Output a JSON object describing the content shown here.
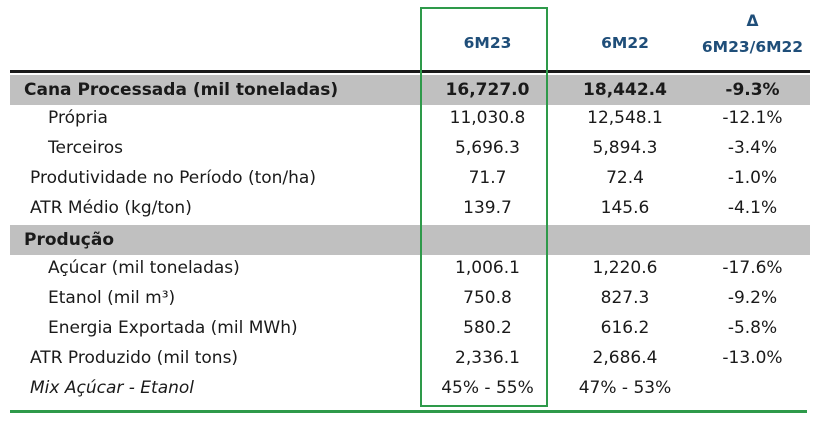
{
  "header": {
    "col1": "6M23",
    "col2": "6M22",
    "col3_symbol": "Δ",
    "col3": "6M23/6M22"
  },
  "rows": [
    {
      "label": "Cana Processada (mil toneladas)",
      "v1": "16,727.0",
      "v2": "18,442.4",
      "v3": "-9.3%"
    },
    {
      "label": "Própria",
      "v1": "11,030.8",
      "v2": "12,548.1",
      "v3": "-12.1%"
    },
    {
      "label": "Terceiros",
      "v1": "5,696.3",
      "v2": "5,894.3",
      "v3": "-3.4%"
    },
    {
      "label": "Produtividade no Período (ton/ha)",
      "v1": "71.7",
      "v2": "72.4",
      "v3": "-1.0%"
    },
    {
      "label": "ATR Médio (kg/ton)",
      "v1": "139.7",
      "v2": "145.6",
      "v3": "-4.1%"
    },
    {
      "label": "Produção",
      "v1": "",
      "v2": "",
      "v3": ""
    },
    {
      "label": "Açúcar (mil toneladas)",
      "v1": "1,006.1",
      "v2": "1,220.6",
      "v3": "-17.6%"
    },
    {
      "label": "Etanol (mil m³)",
      "v1": "750.8",
      "v2": "827.3",
      "v3": "-9.2%"
    },
    {
      "label": "Energia Exportada (mil MWh)",
      "v1": "580.2",
      "v2": "616.2",
      "v3": "-5.8%"
    },
    {
      "label": "ATR Produzido (mil tons)",
      "v1": "2,336.1",
      "v2": "2,686.4",
      "v3": "-13.0%"
    },
    {
      "label": "Mix Açúcar - Etanol",
      "v1": "45% - 55%",
      "v2": "47% - 53%",
      "v3": ""
    }
  ]
}
